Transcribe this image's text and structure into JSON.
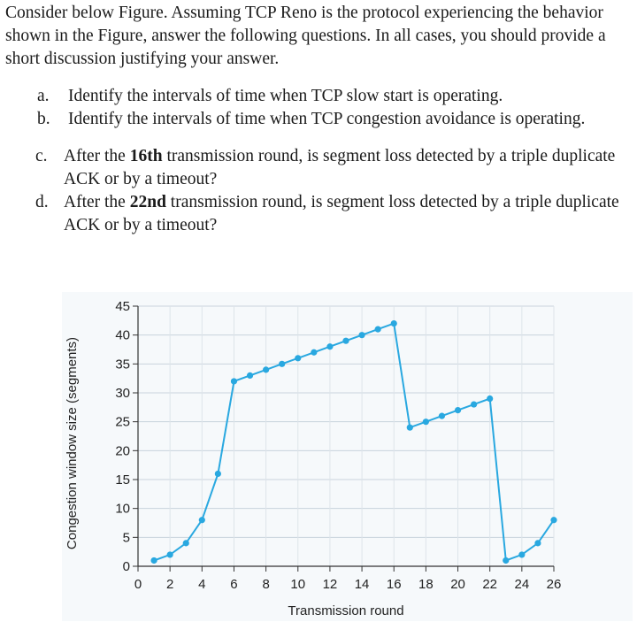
{
  "question": {
    "intro": "Consider below Figure. Assuming TCP Reno is the protocol experiencing the behavior shown in the Figure, answer the following questions. In all cases, you should provide a short discussion justifying your answer.",
    "items": [
      {
        "marker": "a.",
        "parts": [
          "Identify the intervals of time when TCP slow start is operating."
        ]
      },
      {
        "marker": "b.",
        "parts": [
          "Identify the intervals of time when TCP congestion avoidance is operating."
        ]
      },
      {
        "marker": "c.",
        "pre": "After the ",
        "bold": "16th",
        "post": " transmission round, is segment loss detected by a triple duplicate ACK or by a timeout?"
      },
      {
        "marker": "d.",
        "pre": "After the ",
        "bold": "22nd",
        "post": " transmission round, is segment loss detected by a triple duplicate ACK or by a timeout?"
      }
    ]
  },
  "chart_data": {
    "type": "line",
    "xlabel": "Transmission round",
    "ylabel": "Congestion window size (segments)",
    "xlim": [
      0,
      26
    ],
    "ylim": [
      0,
      45
    ],
    "xticks": [
      0,
      2,
      4,
      6,
      8,
      10,
      12,
      14,
      16,
      18,
      20,
      22,
      24,
      26
    ],
    "yticks": [
      0,
      5,
      10,
      15,
      20,
      25,
      30,
      35,
      40,
      45
    ],
    "grid": true,
    "line_color": "#29a8e0",
    "x": [
      1,
      2,
      3,
      4,
      5,
      6,
      7,
      8,
      9,
      10,
      11,
      12,
      13,
      14,
      15,
      16,
      17,
      18,
      19,
      20,
      21,
      22,
      23,
      24,
      25,
      26
    ],
    "y": [
      1,
      2,
      4,
      8,
      16,
      32,
      33,
      34,
      35,
      36,
      37,
      38,
      39,
      40,
      41,
      42,
      24,
      25,
      26,
      27,
      28,
      29,
      1,
      2,
      4,
      8
    ]
  }
}
